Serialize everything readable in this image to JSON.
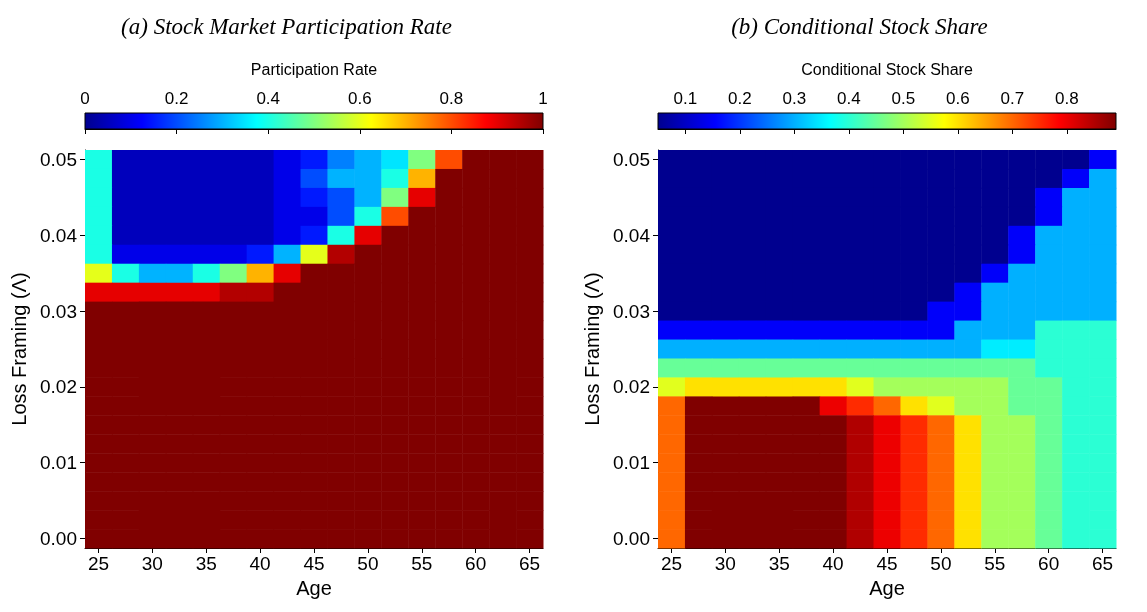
{
  "chart_data": [
    {
      "type": "heatmap",
      "title": "(a) Stock Market Participation Rate",
      "xlabel": "Age",
      "ylabel": "Loss Framing (Λ)",
      "clabel": "Participation Rate",
      "categories": [
        "25",
        null,
        "30",
        null,
        "35",
        null,
        "40",
        null,
        "45",
        null,
        "50",
        null,
        "55",
        null,
        "60",
        null,
        "65"
      ],
      "y_categories": [
        "0.05",
        null,
        null,
        null,
        "0.04",
        null,
        null,
        null,
        "0.03",
        null,
        null,
        null,
        "0.02",
        null,
        null,
        null,
        "0.01",
        null,
        null,
        null,
        "0.00"
      ],
      "cells": [
        [
          0.4,
          0.05,
          0.05,
          0.05,
          0.05,
          0.05,
          0.05,
          0.1,
          0.15,
          0.25,
          0.3,
          0.35,
          0.5,
          0.8,
          1,
          1,
          1
        ],
        [
          0.4,
          0.05,
          0.05,
          0.05,
          0.05,
          0.05,
          0.05,
          0.1,
          0.2,
          0.3,
          0.3,
          0.4,
          0.7,
          1,
          1,
          1,
          1
        ],
        [
          0.4,
          0.05,
          0.05,
          0.05,
          0.05,
          0.05,
          0.05,
          0.1,
          0.15,
          0.2,
          0.3,
          0.5,
          0.9,
          1,
          1,
          1,
          1
        ],
        [
          0.4,
          0.05,
          0.05,
          0.05,
          0.05,
          0.05,
          0.05,
          0.1,
          0.1,
          0.2,
          0.4,
          0.8,
          1,
          1,
          1,
          1,
          1
        ],
        [
          0.4,
          0.05,
          0.05,
          0.05,
          0.05,
          0.05,
          0.05,
          0.1,
          0.15,
          0.4,
          0.9,
          1,
          1,
          1,
          1,
          1,
          1
        ],
        [
          0.4,
          0.1,
          0.1,
          0.1,
          0.1,
          0.1,
          0.15,
          0.3,
          0.6,
          0.95,
          1,
          1,
          1,
          1,
          1,
          1,
          1
        ],
        [
          0.6,
          0.4,
          0.3,
          0.3,
          0.4,
          0.5,
          0.7,
          0.9,
          1,
          1,
          1,
          1,
          1,
          1,
          1,
          1,
          1
        ],
        [
          0.9,
          0.9,
          0.9,
          0.9,
          0.9,
          0.95,
          0.95,
          1,
          1,
          1,
          1,
          1,
          1,
          1,
          1,
          1,
          1
        ],
        [
          1,
          1,
          1,
          1,
          1,
          1,
          1,
          1,
          1,
          1,
          1,
          1,
          1,
          1,
          1,
          1,
          1
        ],
        [
          1,
          1,
          1,
          1,
          1,
          1,
          1,
          1,
          1,
          1,
          1,
          1,
          1,
          1,
          1,
          1,
          1
        ],
        [
          1,
          1,
          1,
          1,
          1,
          1,
          1,
          1,
          1,
          1,
          1,
          1,
          1,
          1,
          1,
          1,
          1
        ],
        [
          1,
          1,
          1,
          1,
          1,
          1,
          1,
          1,
          1,
          1,
          1,
          1,
          1,
          1,
          1,
          1,
          1
        ],
        [
          1,
          1,
          1,
          1,
          1,
          1,
          1,
          1,
          1,
          1,
          1,
          1,
          1,
          1,
          1,
          1,
          1
        ],
        [
          1,
          1,
          1,
          1,
          1,
          1,
          1,
          1,
          1,
          1,
          1,
          1,
          1,
          1,
          1,
          1,
          1
        ],
        [
          1,
          1,
          1,
          1,
          1,
          1,
          1,
          1,
          1,
          1,
          1,
          1,
          1,
          1,
          1,
          1,
          1
        ],
        [
          1,
          1,
          1,
          1,
          1,
          1,
          1,
          1,
          1,
          1,
          1,
          1,
          1,
          1,
          1,
          1,
          1
        ],
        [
          1,
          1,
          1,
          1,
          1,
          1,
          1,
          1,
          1,
          1,
          1,
          1,
          1,
          1,
          1,
          1,
          1
        ],
        [
          1,
          1,
          1,
          1,
          1,
          1,
          1,
          1,
          1,
          1,
          1,
          1,
          1,
          1,
          1,
          1,
          1
        ],
        [
          1,
          1,
          1,
          1,
          1,
          1,
          1,
          1,
          1,
          1,
          1,
          1,
          1,
          1,
          1,
          1,
          1
        ],
        [
          1,
          1,
          1,
          1,
          1,
          1,
          1,
          1,
          1,
          1,
          1,
          1,
          1,
          1,
          1,
          1,
          1
        ],
        [
          1,
          1,
          1,
          1,
          1,
          1,
          1,
          1,
          1,
          1,
          1,
          1,
          1,
          1,
          1,
          1,
          1
        ]
      ],
      "clim": [
        0,
        1
      ],
      "cticks": [
        0,
        0.2,
        0.4,
        0.6,
        0.8,
        1
      ]
    },
    {
      "type": "heatmap",
      "title": "(b) Conditional Stock Share",
      "xlabel": "Age",
      "ylabel": "Loss Framing (Λ)",
      "clabel": "Conditional Stock Share",
      "categories": [
        "25",
        null,
        "30",
        null,
        "35",
        null,
        "40",
        null,
        "45",
        null,
        "50",
        null,
        "55",
        null,
        "60",
        null,
        "65"
      ],
      "y_categories": [
        "0.05",
        null,
        null,
        null,
        "0.04",
        null,
        null,
        null,
        "0.03",
        null,
        null,
        null,
        "0.02",
        null,
        null,
        null,
        "0.01",
        null,
        null,
        null,
        "0.00"
      ],
      "cells": [
        [
          0.05,
          0.05,
          0.05,
          0.05,
          0.05,
          0.05,
          0.05,
          0.05,
          0.05,
          0.05,
          0.05,
          0.05,
          0.05,
          0.05,
          0.05,
          0.05,
          0.15
        ],
        [
          0.05,
          0.05,
          0.05,
          0.05,
          0.05,
          0.05,
          0.05,
          0.05,
          0.05,
          0.05,
          0.05,
          0.05,
          0.05,
          0.05,
          0.05,
          0.15,
          0.3
        ],
        [
          0.05,
          0.05,
          0.05,
          0.05,
          0.05,
          0.05,
          0.05,
          0.05,
          0.05,
          0.05,
          0.05,
          0.05,
          0.05,
          0.05,
          0.15,
          0.3,
          0.3
        ],
        [
          0.05,
          0.05,
          0.05,
          0.05,
          0.05,
          0.05,
          0.05,
          0.05,
          0.05,
          0.05,
          0.05,
          0.05,
          0.05,
          0.05,
          0.15,
          0.3,
          0.3
        ],
        [
          0.05,
          0.05,
          0.05,
          0.05,
          0.05,
          0.05,
          0.05,
          0.05,
          0.05,
          0.05,
          0.05,
          0.05,
          0.05,
          0.15,
          0.3,
          0.3,
          0.3
        ],
        [
          0.05,
          0.05,
          0.05,
          0.05,
          0.05,
          0.05,
          0.05,
          0.05,
          0.05,
          0.05,
          0.05,
          0.05,
          0.05,
          0.15,
          0.3,
          0.3,
          0.3
        ],
        [
          0.05,
          0.05,
          0.05,
          0.05,
          0.05,
          0.05,
          0.05,
          0.05,
          0.05,
          0.05,
          0.05,
          0.05,
          0.15,
          0.3,
          0.3,
          0.3,
          0.3
        ],
        [
          0.05,
          0.05,
          0.05,
          0.05,
          0.05,
          0.05,
          0.05,
          0.05,
          0.05,
          0.05,
          0.05,
          0.15,
          0.3,
          0.3,
          0.3,
          0.3,
          0.3
        ],
        [
          0.05,
          0.05,
          0.05,
          0.05,
          0.05,
          0.05,
          0.05,
          0.05,
          0.05,
          0.05,
          0.15,
          0.15,
          0.3,
          0.3,
          0.3,
          0.3,
          0.3
        ],
        [
          0.15,
          0.15,
          0.15,
          0.15,
          0.15,
          0.15,
          0.15,
          0.15,
          0.15,
          0.15,
          0.15,
          0.3,
          0.3,
          0.3,
          0.4,
          0.4,
          0.4
        ],
        [
          0.3,
          0.3,
          0.3,
          0.3,
          0.3,
          0.3,
          0.3,
          0.3,
          0.3,
          0.3,
          0.3,
          0.3,
          0.35,
          0.35,
          0.4,
          0.4,
          0.4
        ],
        [
          0.45,
          0.45,
          0.45,
          0.45,
          0.45,
          0.45,
          0.45,
          0.45,
          0.45,
          0.45,
          0.45,
          0.45,
          0.45,
          0.45,
          0.4,
          0.4,
          0.4
        ],
        [
          0.55,
          0.6,
          0.6,
          0.6,
          0.6,
          0.6,
          0.6,
          0.55,
          0.5,
          0.5,
          0.5,
          0.5,
          0.5,
          0.45,
          0.45,
          0.4,
          0.4
        ],
        [
          0.7,
          0.89,
          0.89,
          0.89,
          0.89,
          0.89,
          0.8,
          0.75,
          0.7,
          0.6,
          0.55,
          0.5,
          0.5,
          0.45,
          0.45,
          0.4,
          0.4
        ],
        [
          0.7,
          0.89,
          0.89,
          0.89,
          0.89,
          0.89,
          0.89,
          0.85,
          0.8,
          0.75,
          0.7,
          0.6,
          0.5,
          0.5,
          0.45,
          0.4,
          0.4
        ],
        [
          0.7,
          0.89,
          0.89,
          0.89,
          0.89,
          0.89,
          0.89,
          0.85,
          0.8,
          0.75,
          0.7,
          0.6,
          0.5,
          0.5,
          0.45,
          0.4,
          0.4
        ],
        [
          0.7,
          0.89,
          0.89,
          0.89,
          0.89,
          0.89,
          0.89,
          0.85,
          0.8,
          0.75,
          0.7,
          0.6,
          0.5,
          0.5,
          0.45,
          0.4,
          0.4
        ],
        [
          0.7,
          0.89,
          0.89,
          0.89,
          0.89,
          0.89,
          0.89,
          0.85,
          0.8,
          0.75,
          0.7,
          0.6,
          0.5,
          0.5,
          0.45,
          0.4,
          0.4
        ],
        [
          0.7,
          0.89,
          0.89,
          0.89,
          0.89,
          0.89,
          0.89,
          0.85,
          0.8,
          0.75,
          0.7,
          0.6,
          0.5,
          0.5,
          0.45,
          0.4,
          0.4
        ],
        [
          0.7,
          0.89,
          0.89,
          0.89,
          0.89,
          0.89,
          0.89,
          0.85,
          0.8,
          0.75,
          0.7,
          0.6,
          0.5,
          0.5,
          0.45,
          0.4,
          0.4
        ],
        [
          0.7,
          0.89,
          0.89,
          0.89,
          0.89,
          0.89,
          0.89,
          0.85,
          0.8,
          0.75,
          0.7,
          0.6,
          0.5,
          0.5,
          0.45,
          0.4,
          0.4
        ]
      ],
      "clim": [
        0.05,
        0.89
      ],
      "cticks": [
        0.1,
        0.2,
        0.3,
        0.4,
        0.5,
        0.6,
        0.7,
        0.8
      ]
    }
  ]
}
